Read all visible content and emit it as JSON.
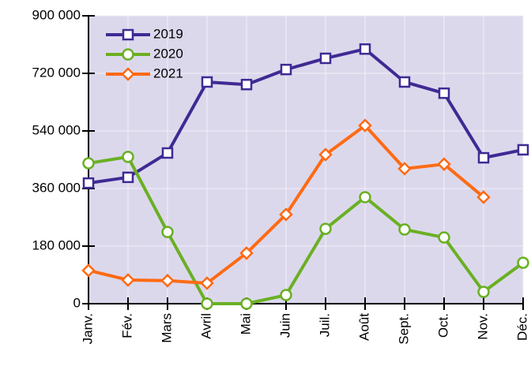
{
  "chart_data": {
    "type": "line",
    "categories": [
      "Janv.",
      "Fév.",
      "Mars",
      "Avril",
      "Mai",
      "Juin",
      "Juil.",
      "Août",
      "Sept.",
      "Oct.",
      "Nov.",
      "Déc."
    ],
    "series": [
      {
        "name": "2019",
        "color": "#3f2a94",
        "marker": "square",
        "values": [
          377000,
          395000,
          471000,
          693000,
          685000,
          732000,
          767000,
          796000,
          693000,
          658000,
          456000,
          481000
        ]
      },
      {
        "name": "2020",
        "color": "#6ab023",
        "marker": "circle",
        "values": [
          439000,
          459000,
          224000,
          0,
          0,
          27000,
          234000,
          333000,
          232000,
          207000,
          37000,
          128000
        ]
      },
      {
        "name": "2021",
        "color": "#ff6a13",
        "marker": "diamond",
        "values": [
          104000,
          74000,
          72000,
          64000,
          158000,
          279000,
          466000,
          557000,
          422000,
          436000,
          333000,
          null
        ]
      }
    ],
    "ylim": [
      0,
      900000
    ],
    "yticks": [
      {
        "value": 0,
        "label": "0"
      },
      {
        "value": 180000,
        "label": "180 000"
      },
      {
        "value": 360000,
        "label": "360 000"
      },
      {
        "value": 540000,
        "label": "540 000"
      },
      {
        "value": 720000,
        "label": "720 000"
      },
      {
        "value": 900000,
        "label": "900 000"
      }
    ],
    "grid": true,
    "legend": "upper-left"
  }
}
